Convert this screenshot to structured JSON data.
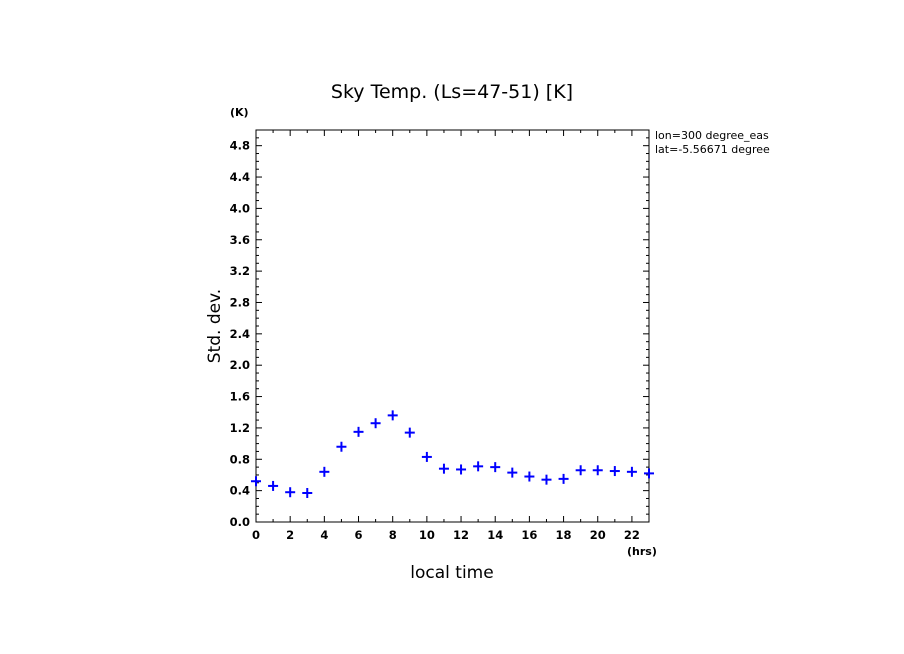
{
  "chart_data": {
    "type": "scatter",
    "title": "Sky Temp. (Ls=47-51) [K]",
    "xlabel": "local time",
    "ylabel": "Std. dev.",
    "x_unit": "(hrs)",
    "y_unit": "(K)",
    "xlim": [
      0,
      23
    ],
    "ylim": [
      0,
      5.0
    ],
    "x_ticks": [
      "0",
      "2",
      "4",
      "6",
      "8",
      "10",
      "12",
      "14",
      "16",
      "18",
      "20",
      "22"
    ],
    "y_ticks": [
      "0.0",
      "0.4",
      "0.8",
      "1.2",
      "1.6",
      "2.0",
      "2.4",
      "2.8",
      "3.2",
      "3.6",
      "4.0",
      "4.4",
      "4.8"
    ],
    "marker": "+",
    "color": "#0000ff",
    "annotations": [
      "lon=300 degree_eas",
      "lat=-5.56671 degree"
    ],
    "series": [
      {
        "name": "std-dev",
        "x": [
          0,
          1,
          2,
          3,
          4,
          5,
          6,
          7,
          8,
          9,
          10,
          11,
          12,
          13,
          14,
          15,
          16,
          17,
          18,
          19,
          20,
          21,
          22,
          23
        ],
        "y": [
          0.52,
          0.46,
          0.38,
          0.37,
          0.64,
          0.96,
          1.15,
          1.26,
          1.36,
          1.14,
          0.83,
          0.68,
          0.67,
          0.71,
          0.7,
          0.63,
          0.58,
          0.54,
          0.55,
          0.66,
          0.66,
          0.65,
          0.64,
          0.62
        ]
      }
    ]
  }
}
